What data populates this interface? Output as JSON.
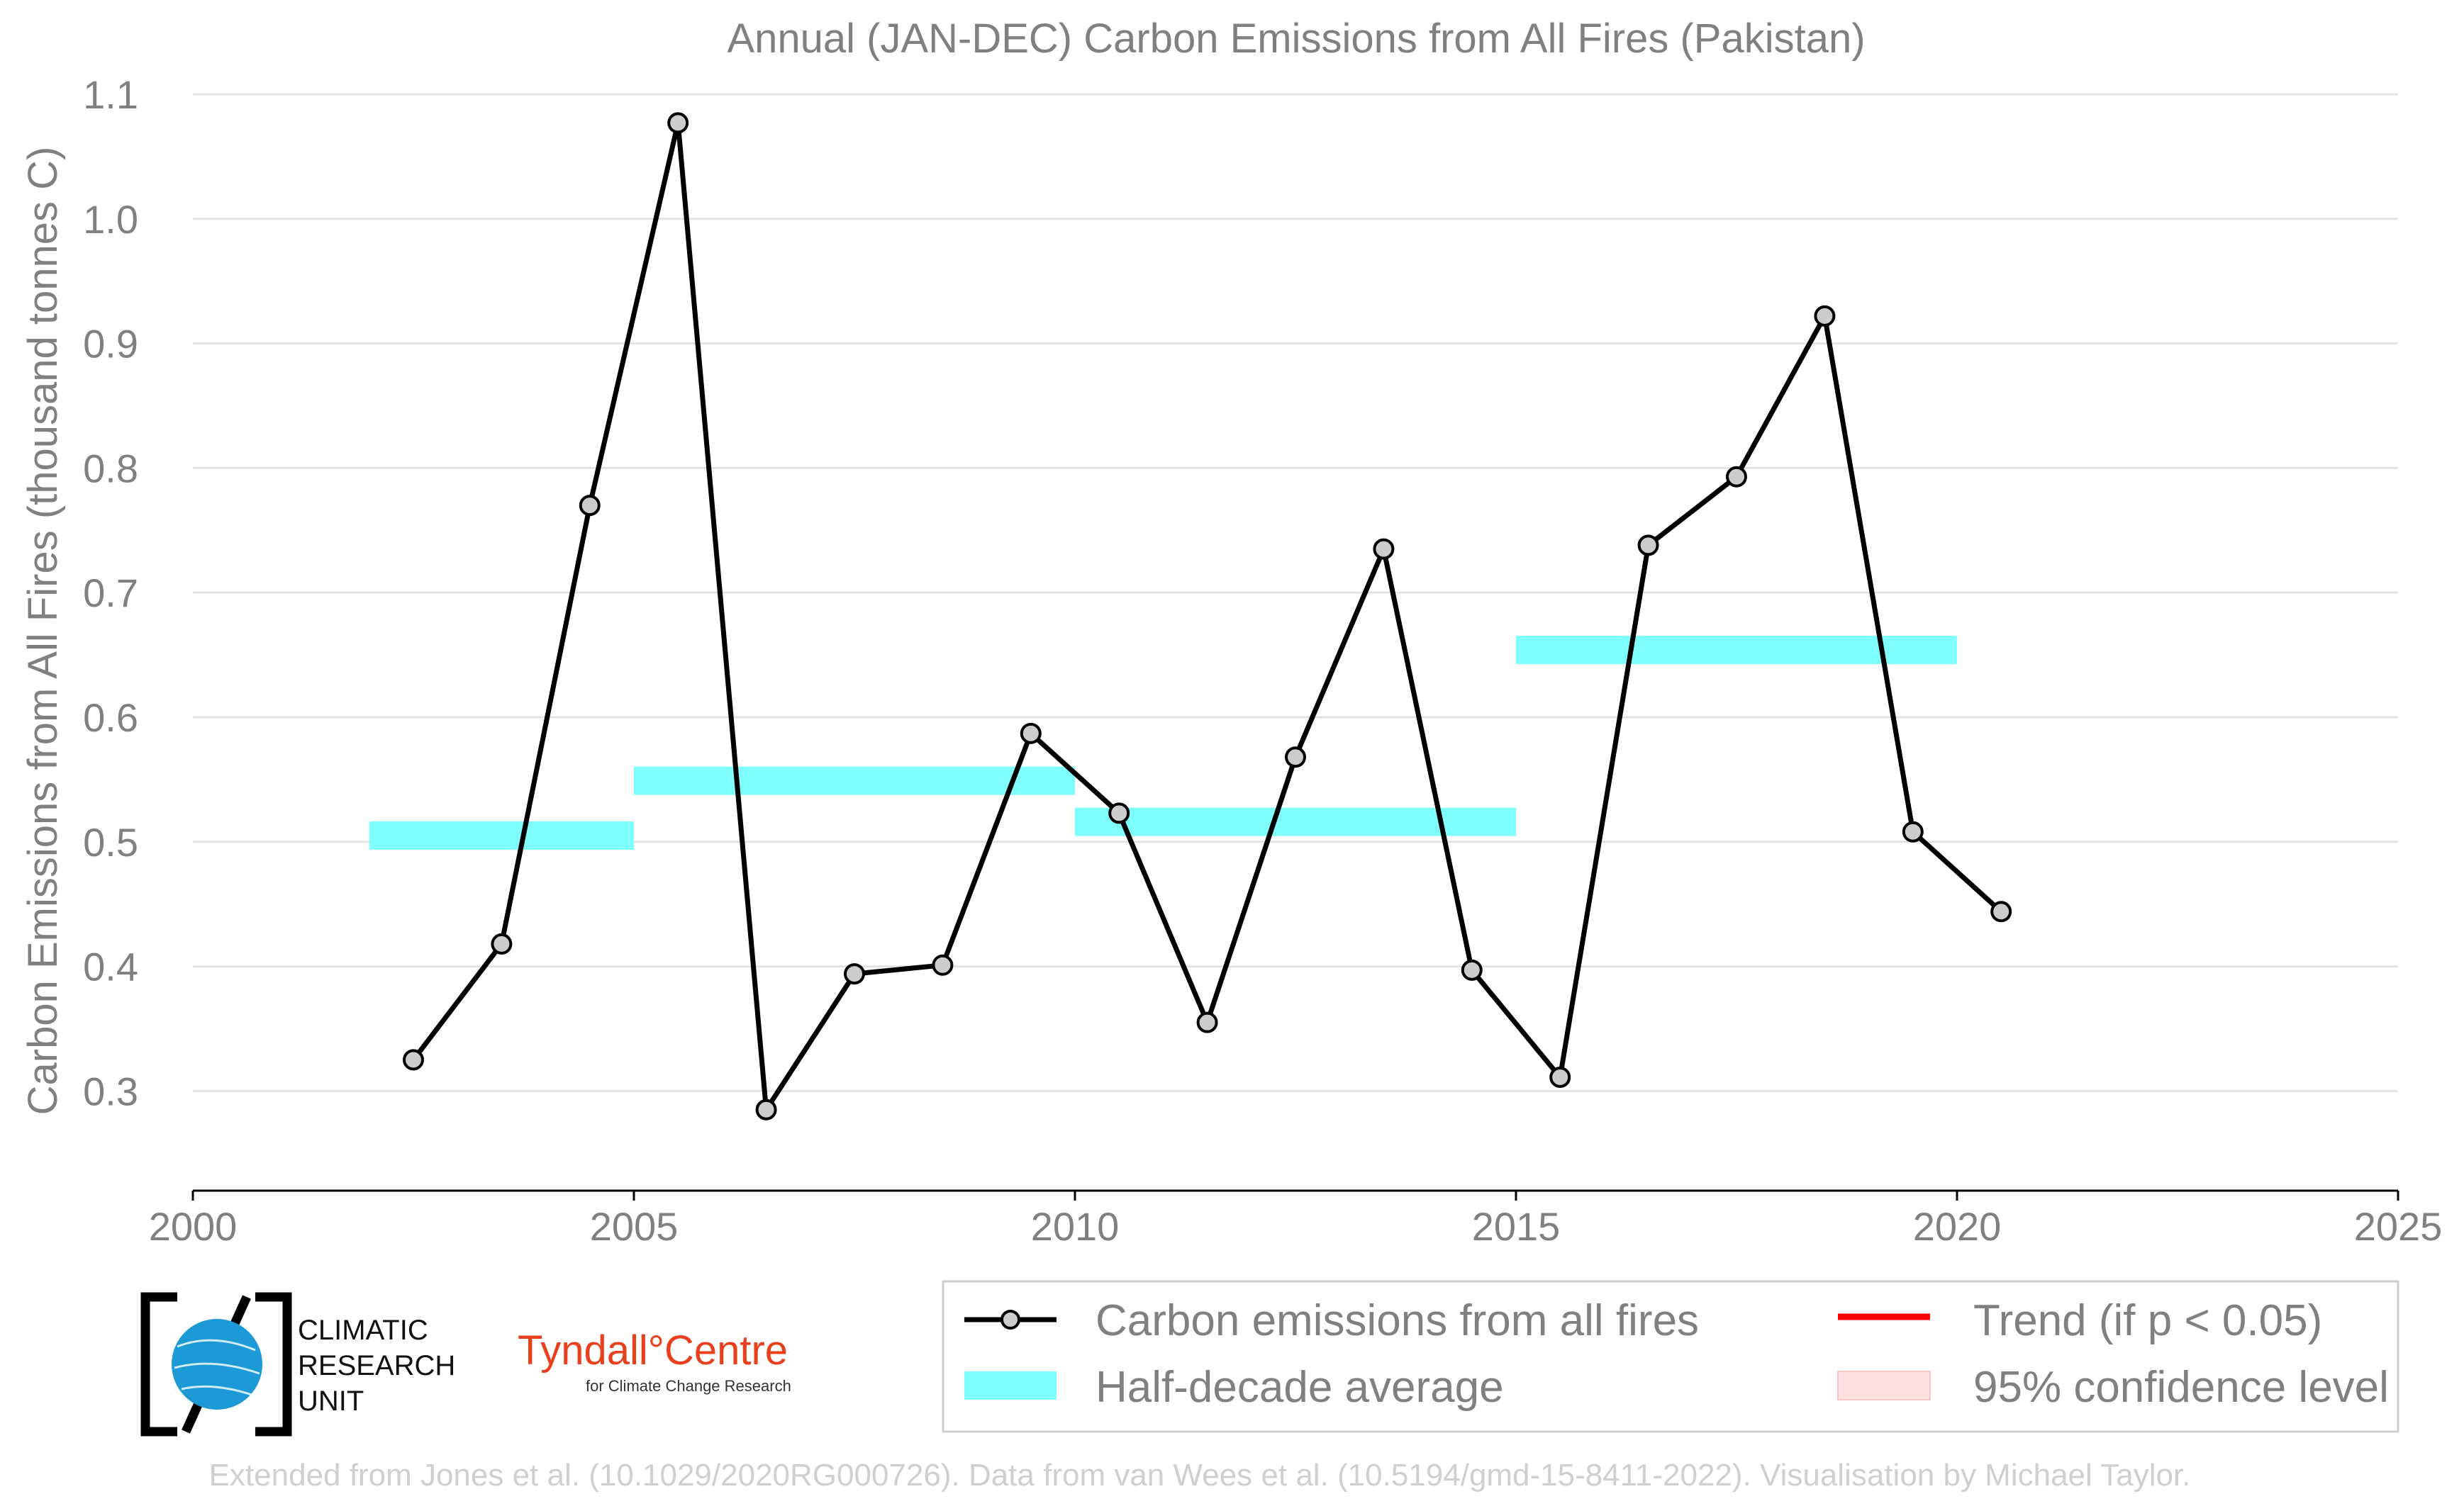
{
  "chart_data": {
    "type": "line",
    "title": "Annual (JAN-DEC) Carbon Emissions from All Fires (Pakistan)",
    "xlabel": "",
    "ylabel": "Carbon Emissions from All Fires (thousand tonnes C)",
    "xlim": [
      2000,
      2025
    ],
    "ylim": [
      0.22,
      1.1
    ],
    "x_ticks": [
      "2000",
      "2005",
      "2010",
      "2015",
      "2020",
      "2025"
    ],
    "y_ticks": [
      "0.3",
      "0.4",
      "0.5",
      "0.6",
      "0.7",
      "0.8",
      "0.9",
      "1.0",
      "1.1"
    ],
    "grid": "horizontal",
    "legend_position": "bottom",
    "series": [
      {
        "name": "Carbon emissions from all fires",
        "color": "#000000",
        "x": [
          2002.5,
          2003.5,
          2004.5,
          2005.5,
          2006.5,
          2007.5,
          2008.5,
          2009.5,
          2010.5,
          2011.5,
          2012.5,
          2013.5,
          2014.5,
          2015.5,
          2016.5,
          2017.5,
          2018.5,
          2019.5,
          2020.5
        ],
        "y": [
          0.325,
          0.418,
          0.77,
          1.077,
          0.285,
          0.394,
          0.401,
          0.587,
          0.523,
          0.355,
          0.568,
          0.735,
          0.397,
          0.311,
          0.738,
          0.793,
          0.922,
          0.508,
          0.444
        ]
      },
      {
        "name": "Half-decade average",
        "color": "#7fffff",
        "segments": [
          {
            "x_start": 2002,
            "x_end": 2005,
            "y": 0.505
          },
          {
            "x_start": 2005,
            "x_end": 2010,
            "y": 0.549
          },
          {
            "x_start": 2010,
            "x_end": 2015,
            "y": 0.516
          },
          {
            "x_start": 2015,
            "x_end": 2020,
            "y": 0.654
          }
        ]
      }
    ],
    "legend": [
      {
        "label": "Carbon emissions from all fires",
        "symbol": "line-marker",
        "color": "#000000"
      },
      {
        "label": "Trend (if p < 0.05)",
        "symbol": "line",
        "color": "#ff0000"
      },
      {
        "label": "Half-decade average",
        "symbol": "patch",
        "color": "#7fffff"
      },
      {
        "label": "95% confidence level",
        "symbol": "patch",
        "color": "#fde0e0"
      }
    ]
  },
  "logos": {
    "cru_lines": [
      "CLIMATIC",
      "RESEARCH",
      "UNIT"
    ],
    "tyndall_main": "Tyndall°Centre",
    "tyndall_sub": "for Climate Change Research"
  },
  "footer": "Extended from Jones et al. (10.1029/2020RG000726). Data from van Wees et al. (10.5194/gmd-15-8411-2022). Visualisation by Michael Taylor."
}
